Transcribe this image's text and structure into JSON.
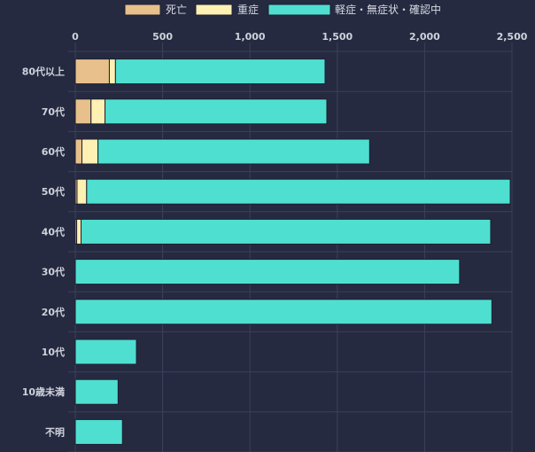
{
  "colors": {
    "background": "#262a40",
    "grid": "#3c4058",
    "text": "#d6d8e2",
    "bar_border": "#1c1f30"
  },
  "chart_data": {
    "type": "bar",
    "orientation": "horizontal",
    "stacked": true,
    "title": "",
    "xlabel": "",
    "ylabel": "",
    "xlim": [
      0,
      2500
    ],
    "xticks": [
      0,
      500,
      1000,
      1500,
      2000,
      2500
    ],
    "xtick_labels": [
      "0",
      "500",
      "1,000",
      "1,500",
      "2,000",
      "2,500"
    ],
    "grid": true,
    "legend_position": "top",
    "categories": [
      "80代以上",
      "70代",
      "60代",
      "50代",
      "40代",
      "30代",
      "20代",
      "10代",
      "10歳未満",
      "不明"
    ],
    "series": [
      {
        "name": "死亡",
        "color": "#e8c08c",
        "values": [
          195,
          90,
          38,
          10,
          8,
          0,
          0,
          0,
          0,
          0
        ]
      },
      {
        "name": "重症",
        "color": "#fff0b3",
        "values": [
          35,
          80,
          92,
          55,
          25,
          0,
          0,
          0,
          0,
          0
        ]
      },
      {
        "name": "軽症・無症状・確認中",
        "color": "#4fdfd0",
        "values": [
          1200,
          1270,
          1555,
          2425,
          2345,
          2200,
          2385,
          350,
          245,
          270
        ]
      }
    ]
  }
}
